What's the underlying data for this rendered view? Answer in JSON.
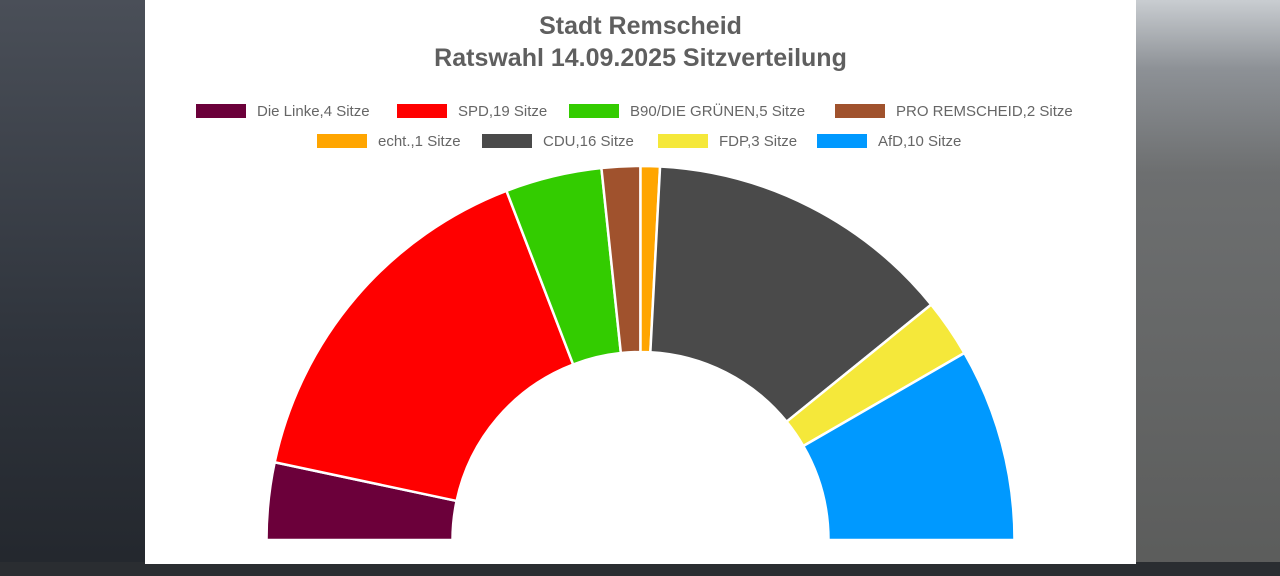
{
  "chart_data": {
    "type": "pie",
    "subtype": "parliament-semicircle",
    "title": "Stadt Remscheid",
    "subtitle": "Ratswahl 14.09.2025 Sitzverteilung",
    "legend_position": "top",
    "series": [
      {
        "name": "Die Linke,4 Sitze",
        "party": "Die Linke",
        "value": 4,
        "color": "#6b003a"
      },
      {
        "name": "SPD,19 Sitze",
        "party": "SPD",
        "value": 19,
        "color": "#ff0000"
      },
      {
        "name": "B90/DIE GRÜNEN,5 Sitze",
        "party": "B90/DIE GRÜNEN",
        "value": 5,
        "color": "#33cc00"
      },
      {
        "name": "PRO REMSCHEID,2 Sitze",
        "party": "PRO REMSCHEID",
        "value": 2,
        "color": "#a0522d"
      },
      {
        "name": "echt.,1 Sitze",
        "party": "echt.",
        "value": 1,
        "color": "#ffa500"
      },
      {
        "name": "CDU,16 Sitze",
        "party": "CDU",
        "value": 16,
        "color": "#4a4a4a"
      },
      {
        "name": "FDP,3 Sitze",
        "party": "FDP",
        "value": 3,
        "color": "#f5e83a"
      },
      {
        "name": "AfD,10 Sitze",
        "party": "AfD",
        "value": 10,
        "color": "#0099ff"
      }
    ]
  }
}
